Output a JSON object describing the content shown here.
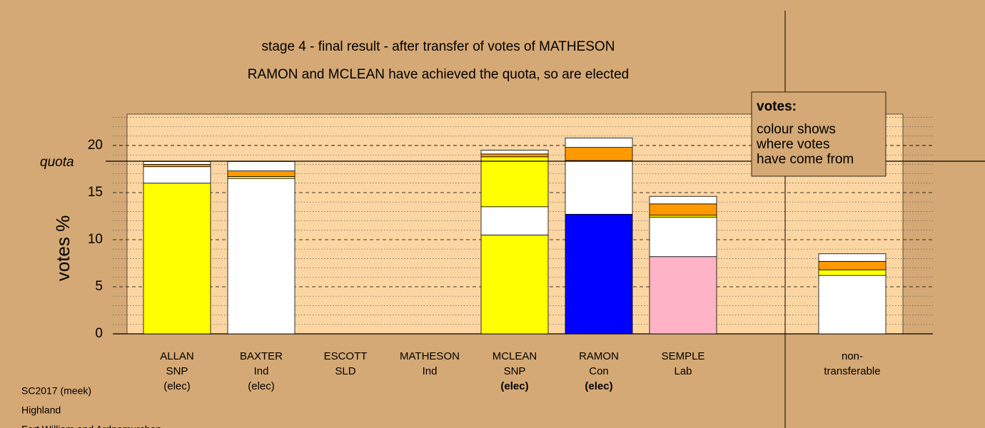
{
  "chart_data": {
    "type": "stacked-bar",
    "title": "stage 4 - final result - after transfer of votes of MATHESON",
    "subtitle": "RAMON and MCLEAN have achieved the quota, so are elected",
    "y_label": "votes %",
    "quota_label": "quota",
    "quota": 18.33,
    "ylim": [
      0,
      23.33
    ],
    "yticks": [
      0,
      5,
      10,
      15,
      20
    ],
    "minor_yticks": [
      1,
      2,
      3,
      4,
      6,
      7,
      8,
      9,
      11,
      12,
      13,
      14,
      16,
      17,
      18,
      19,
      21,
      22,
      23
    ],
    "categories": [
      [
        "ALLAN",
        "SNP",
        "(elec)"
      ],
      [
        "BAXTER",
        "Ind",
        "(elec)"
      ],
      [
        "ESCOTT",
        "SLD"
      ],
      [
        "MATHESON",
        "Ind"
      ],
      [
        "MCLEAN",
        "SNP",
        "(elec)"
      ],
      [
        "RAMON",
        "Con",
        "(elec)"
      ],
      [
        "SEMPLE",
        "Lab"
      ],
      [
        "non-",
        "transferable"
      ]
    ],
    "elected_this_stage": [
      false,
      false,
      false,
      false,
      true,
      true,
      false,
      false
    ],
    "separated": [
      false,
      false,
      false,
      false,
      false,
      false,
      false,
      true
    ],
    "segments": [
      [
        {
          "color": "#ffff00",
          "value": 16.0
        },
        {
          "color": "#ffffff",
          "value": 1.75
        },
        {
          "color": "#ff9900",
          "value": 0.25
        },
        {
          "color": "#ffffff",
          "value": 0.3
        }
      ],
      [
        {
          "color": "#ffffff",
          "value": 16.5
        },
        {
          "color": "#ffff00",
          "value": 0.2
        },
        {
          "color": "#ff9900",
          "value": 0.6
        },
        {
          "color": "#ffffff",
          "value": 1.0
        }
      ],
      [],
      [],
      [
        {
          "color": "#ffff00",
          "value": 10.5
        },
        {
          "color": "#ffffff",
          "value": 3.0
        },
        {
          "color": "#ffff00",
          "value": 5.3
        },
        {
          "color": "#ff9900",
          "value": 0.3
        },
        {
          "color": "#ffffff",
          "value": 0.4
        }
      ],
      [
        {
          "color": "#0000ff",
          "value": 12.7
        },
        {
          "color": "#ffffff",
          "value": 5.7
        },
        {
          "color": "#ff9900",
          "value": 1.4
        },
        {
          "color": "#ffffff",
          "value": 1.0
        }
      ],
      [
        {
          "color": "#ffb3c6",
          "value": 8.2
        },
        {
          "color": "#ffffff",
          "value": 4.2
        },
        {
          "color": "#ffff00",
          "value": 0.2
        },
        {
          "color": "#ff9900",
          "value": 1.2
        },
        {
          "color": "#ffffff",
          "value": 0.8
        }
      ],
      [
        {
          "color": "#ffffff",
          "value": 6.2
        },
        {
          "color": "#ffff00",
          "value": 0.6
        },
        {
          "color": "#ff9900",
          "value": 0.9
        },
        {
          "color": "#ffffff",
          "value": 0.8
        }
      ]
    ],
    "legend": {
      "title": "votes:",
      "lines": [
        "colour shows",
        "where votes",
        "have come from"
      ]
    },
    "footnotes": [
      "SC2017 (meek)",
      "Highland",
      "Fort William and Ardnamurchan"
    ]
  }
}
